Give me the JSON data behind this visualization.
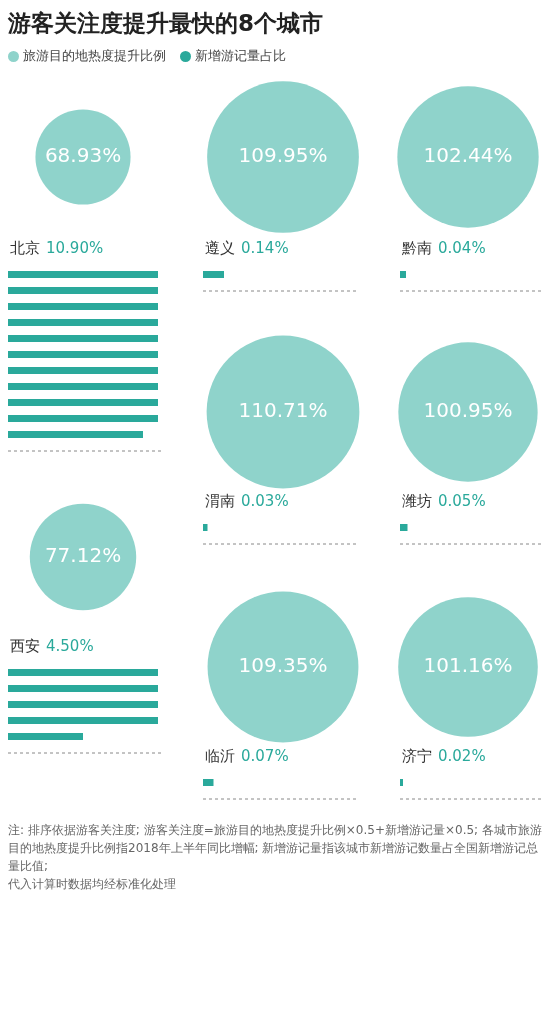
{
  "chart_data": {
    "type": "other",
    "title": "游客关注度提升最快的8个城市",
    "legend": "top left",
    "categories": [
      "北京",
      "遵义",
      "黔南",
      "渭南",
      "潍坊",
      "西安",
      "临沂",
      "济宁"
    ],
    "series": [
      {
        "name": "旅游目的地热度提升比例",
        "color": "#8fd3cb",
        "values": [
          68.93,
          109.95,
          102.44,
          110.71,
          100.95,
          77.12,
          109.35,
          101.16
        ],
        "value_labels": [
          "68.93%",
          "109.95%",
          "102.44%",
          "110.71%",
          "100.95%",
          "77.12%",
          "109.35%",
          "101.16%"
        ]
      },
      {
        "name": "新增游记量占比",
        "color": "#2aa99b",
        "values": [
          10.9,
          0.14,
          0.04,
          0.03,
          0.05,
          4.5,
          0.07,
          0.02
        ],
        "value_labels": [
          "10.90%",
          "0.14%",
          "0.04%",
          "0.03%",
          "0.05%",
          "4.50%",
          "0.07%",
          "0.02%"
        ]
      }
    ],
    "annotations": [
      "注: 排序依据游客关注度; 游客关注度=旅游目的地热度提升比例×0.5+新增游记量×0.5; 各城市旅游目的地热度提升比例指2018年上半年同比增幅; 新增游记量指该城市新增游记数量占全国新增游记总量比值;",
      "代入计算时数据均经标准化处理"
    ]
  }
}
